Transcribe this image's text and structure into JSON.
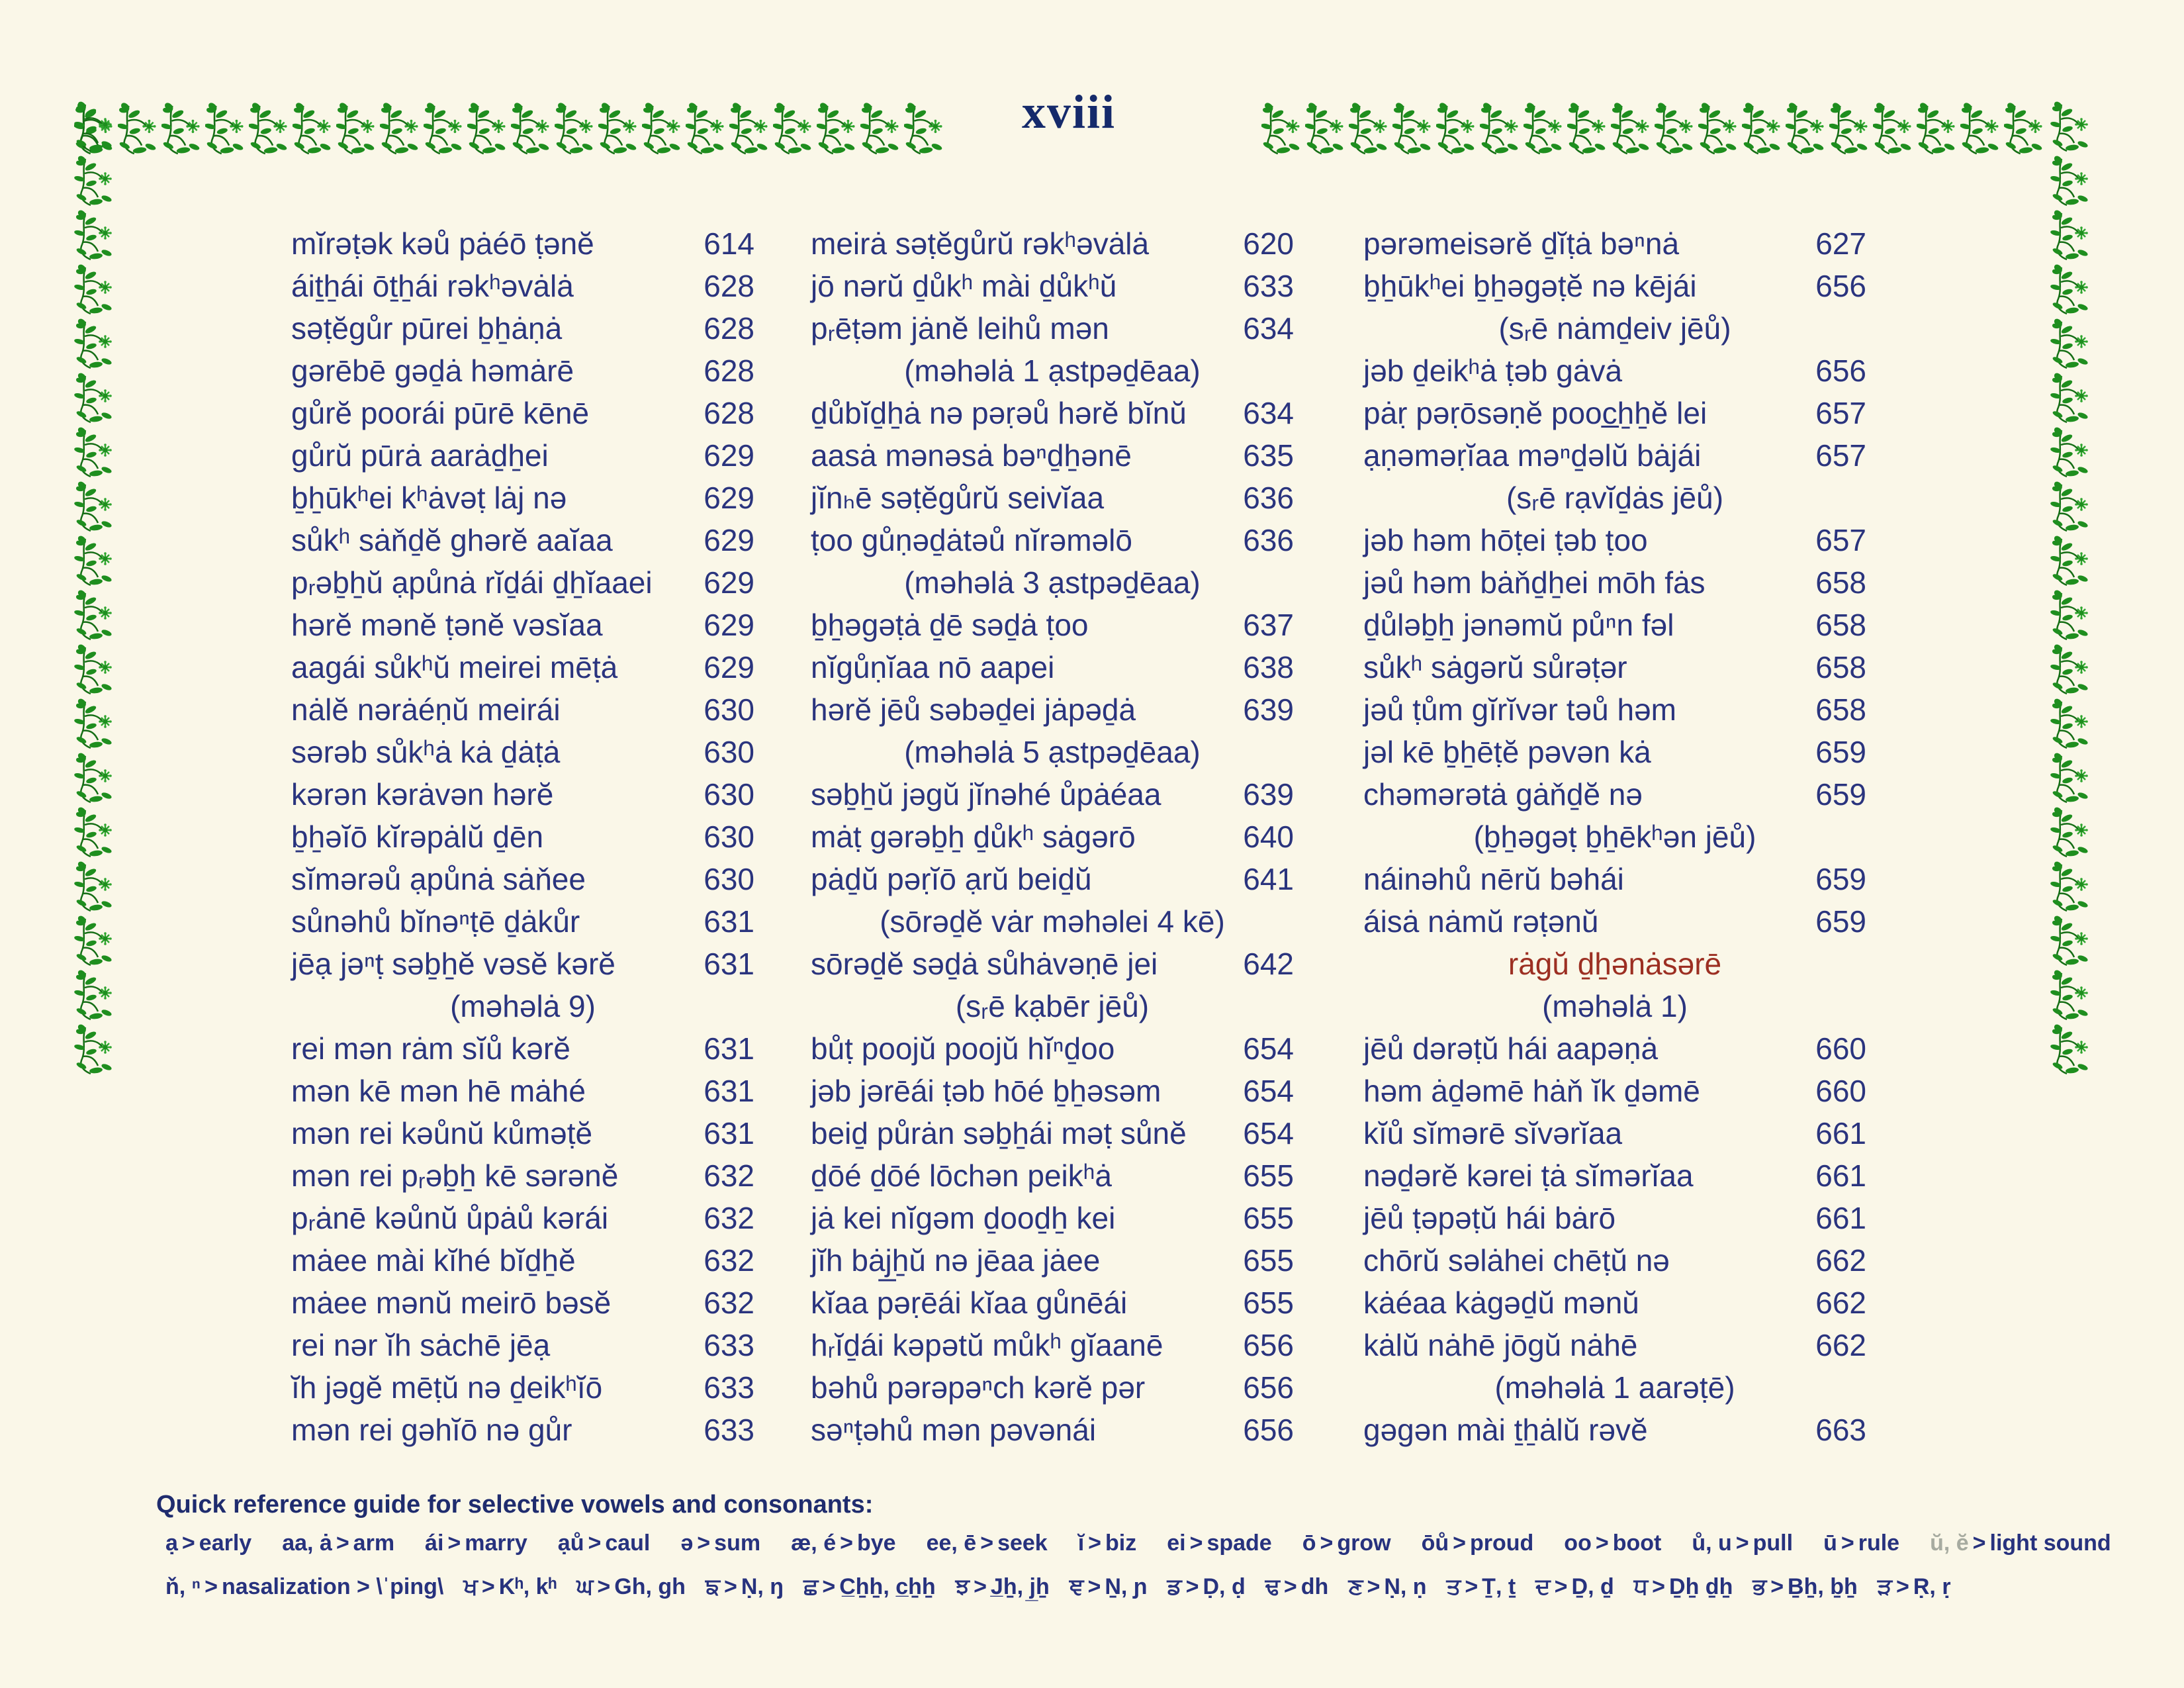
{
  "page": {
    "number_label": "xviii",
    "colors": {
      "background": "#FAF7E8",
      "ink_navy": "#2A347E",
      "title_navy": "#152A6B",
      "raga_red": "#9C2F22",
      "muted_gray": "#A7ABA0",
      "ornament_green": "#1E8E1E"
    },
    "columns": [
      {
        "entries": [
          {
            "t": "mĭrəṭək kəů pȧéō ṭənĕ",
            "p": "614"
          },
          {
            "t": "áiṯẖái ōṯẖái rəkʰəvȧlȧ",
            "p": "628"
          },
          {
            "t": "səṭĕgůr pūrei ḇẖȧṇȧ",
            "p": "628"
          },
          {
            "t": "gərēbē gəḏȧ həmȧrē",
            "p": "628"
          },
          {
            "t": "gůrĕ poorái pūrē kēnē",
            "p": "628"
          },
          {
            "t": "gůrŭ pūrȧ aarȧḏẖei",
            "p": "629"
          },
          {
            "t": "ḇẖūkʰei kʰȧvəṭ lȧj nə",
            "p": "629"
          },
          {
            "t": "sůkʰ sȧňḏĕ ghərĕ aaĭaa",
            "p": "629"
          },
          {
            "t": "pᵣəḇẖŭ ạpůnȧ rĭḏái ḏẖĭaaei",
            "p": "629"
          },
          {
            "t": "hərĕ mənĕ ṭənĕ vəsĭaa",
            "p": "629"
          },
          {
            "t": "aagái sůkʰŭ meirei mēṭȧ",
            "p": "629"
          },
          {
            "t": "nȧlĕ nərȧéṇŭ meirái",
            "p": "630"
          },
          {
            "t": "sərəb sůkʰȧ kȧ ḏȧṭȧ",
            "p": "630"
          },
          {
            "t": "kərən kərȧvən hərĕ",
            "p": "630"
          },
          {
            "t": "ḇẖəĭō kĭrəpȧlŭ ḏēn",
            "p": "630"
          },
          {
            "t": "sĭmərəů ạpůnȧ sȧňee",
            "p": "630"
          },
          {
            "t": "sůnəhů bĭnəⁿṭē ḏȧkůr",
            "p": "631"
          },
          {
            "t": "jēạ jəⁿṭ səḇẖĕ vəsĕ kərĕ",
            "p": "631"
          },
          {
            "h": "(məhəlȧ 9)"
          },
          {
            "t": "rei mən rȧm sĭů kərĕ",
            "p": "631"
          },
          {
            "t": "mən kē mən hē mȧhé",
            "p": "631"
          },
          {
            "t": "mən rei kəůnŭ kůməṭĕ",
            "p": "631"
          },
          {
            "t": "mən rei pᵣəḇẖ kē sərənĕ",
            "p": "632"
          },
          {
            "t": "pᵣȧnē kəůnŭ ůpȧů kərái",
            "p": "632"
          },
          {
            "t": "mȧee mài kĭhé bĭḏẖĕ",
            "p": "632"
          },
          {
            "t": "mȧee mənŭ meirō bəsĕ",
            "p": "632"
          },
          {
            "t": "rei nər ĭh sȧchē jēạ",
            "p": "633"
          },
          {
            "t": "ĭh jəgĕ mēṭŭ nə ḏeikʰĭō",
            "p": "633"
          },
          {
            "t": "mən rei gəhĭō nə gůr",
            "p": "633"
          }
        ]
      },
      {
        "entries": [
          {
            "t": "meirȧ səṭĕgůrŭ rəkʰəvȧlȧ",
            "p": "620"
          },
          {
            "t": "jō nərŭ ḏůkʰ mài ḏůkʰŭ",
            "p": "633"
          },
          {
            "t": "pᵣēṭəm jȧnĕ leihů mən",
            "p": "634"
          },
          {
            "h": "(məhəlȧ 1 ạstpəḏēaa)"
          },
          {
            "t": "ḏůbĭḏẖȧ nə pəṛəů hərĕ bĭnŭ",
            "p": "634"
          },
          {
            "t": "aasȧ mənəsȧ bəⁿḏẖənē",
            "p": "635"
          },
          {
            "t": "jĭnₕē səṭĕgůrŭ seivĭaa",
            "p": "636"
          },
          {
            "t": "ṭoo gůṇəḏȧtəů nĭrəməlō",
            "p": "636"
          },
          {
            "h": "(məhəlȧ 3 ạstpəḏēaa)"
          },
          {
            "t": "ḇẖəgəṭȧ ḏē səḏȧ ṭoo",
            "p": "637"
          },
          {
            "t": "nĭgůṇĭaa nō aapei",
            "p": "638"
          },
          {
            "t": "hərĕ jēů səbəḏei jȧpəḏȧ",
            "p": "639"
          },
          {
            "h": "(məhəlȧ 5 ạstpəḏēaa)"
          },
          {
            "t": "səḇẖŭ jəgŭ jĭnəhé ůpȧéaa",
            "p": "639"
          },
          {
            "t": "mȧṭ gərəḇẖ ḏůkʰ sȧgərō",
            "p": "640"
          },
          {
            "t": "pȧḏŭ pəṛĭō ạrŭ beiḏŭ",
            "p": "641"
          },
          {
            "h": "(sōrəḏĕ vȧr məhəlei 4 kē)"
          },
          {
            "t": "sōrəḏĕ səḏȧ sůhȧvəṇē jei",
            "p": "642"
          },
          {
            "h": "(sᵣē kạbēr jēů)"
          },
          {
            "t": "bůṭ poojŭ poojŭ hĭⁿḏoo",
            "p": "654"
          },
          {
            "t": "jəb jərēái ṭəb hōé ḇẖəsəm",
            "p": "654"
          },
          {
            "t": "beiḏ půrȧn səḇẖái məṭ sůnĕ",
            "p": "654"
          },
          {
            "t": "ḏōé ḏōé lōchən peikʰȧ",
            "p": "655"
          },
          {
            "t": "jȧ kei nĭgəm ḏooḏẖ kei",
            "p": "655"
          },
          {
            "t": "jĭh bȧj̲ẖŭ nə jēaa jȧee",
            "p": "655"
          },
          {
            "t": "kĭaa pəṛēái kĭaa gůnēái",
            "p": "655"
          },
          {
            "t": "hᵣĭḏái kəpətŭ můkʰ gĭaanē",
            "p": "656"
          },
          {
            "t": "bəhů pərəpəⁿch kərĕ pər",
            "p": "656"
          },
          {
            "t": "səⁿṭəhů mən pəvənái",
            "p": "656"
          }
        ]
      },
      {
        "entries": [
          {
            "t": "pərəmeisərĕ ḏĭṭȧ bəⁿnȧ",
            "p": "627"
          },
          {
            "t": "ḇẖūkʰei ḇẖəgəṭĕ nə kējái",
            "p": "656"
          },
          {
            "h": "(sᵣē nȧmḏeiv jēů)"
          },
          {
            "t": "jəb ḏeikʰȧ ṭəb gȧvȧ",
            "p": "656"
          },
          {
            "t": "pȧṛ pəṛōsəṇĕ pooc̲ẖẖĕ lei",
            "p": "657"
          },
          {
            "t": "ạṇəməṛĭaa məⁿḏəlŭ bȧjái",
            "p": "657"
          },
          {
            "h": "(sᵣē rạvĭḏȧs jēů)"
          },
          {
            "t": "jəb həm hōṭei ṭəb ṭoo",
            "p": "657"
          },
          {
            "t": "jəů həm bȧňḏẖei mōh fȧs",
            "p": "658"
          },
          {
            "t": "ḏůləḇẖ jənəmŭ půⁿn fəl",
            "p": "658"
          },
          {
            "t": "sůkʰ sȧgərŭ sůrəṭər",
            "p": "658"
          },
          {
            "t": "jəů ṭům gĭrĭvər təů həm",
            "p": "658"
          },
          {
            "t": "jəl kē ḇẖēṭĕ pəvən kȧ",
            "p": "659"
          },
          {
            "t": "chəmərətȧ gȧňḏĕ nə",
            "p": "659"
          },
          {
            "h": "(ḇẖəgəṭ ḇẖēkʰən jēů)"
          },
          {
            "t": "náinəhů nērŭ bəhái",
            "p": "659"
          },
          {
            "t": "áisȧ nȧmŭ rəṭənŭ",
            "p": "659"
          },
          {
            "h": "rȧgŭ ḏẖənȧsərē",
            "red": true
          },
          {
            "h": "(məhəlȧ 1)"
          },
          {
            "t": "jēů dərəṭŭ hái aapəṇȧ",
            "p": "660"
          },
          {
            "t": "həm ȧḏəmē hȧň ĭk ḏəmē",
            "p": "660"
          },
          {
            "t": "kĭů sĭmərē sĭvərĭaa",
            "p": "661"
          },
          {
            "t": "nəḏərĕ kərei ṭȧ sĭmərĭaa",
            "p": "661"
          },
          {
            "t": "jēů ṭəpəṭŭ hái bȧrō",
            "p": "661"
          },
          {
            "t": "chōrŭ səlȧhei chēṭŭ nə",
            "p": "662"
          },
          {
            "t": "kȧéaa kȧgəḏŭ mənŭ",
            "p": "662"
          },
          {
            "t": "kȧlŭ nȧhē jōgŭ nȧhē",
            "p": "662"
          },
          {
            "h": "(məhəlȧ 1 aarəṭē)"
          },
          {
            "t": "gəgən mài ṯẖȧlŭ rəvĕ",
            "p": "663"
          }
        ]
      }
    ],
    "footer": {
      "title": "Quick reference guide for selective vowels and consonants:",
      "vowels": [
        {
          "k": "ạ",
          "v": "early"
        },
        {
          "k": "aa, ȧ",
          "v": "arm"
        },
        {
          "k": "ái",
          "v": "marry"
        },
        {
          "k": "ạů",
          "v": "caul"
        },
        {
          "k": "ə",
          "v": "sum"
        },
        {
          "k": "æ, é",
          "v": "bye"
        },
        {
          "k": "ee, ē",
          "v": "seek"
        },
        {
          "k": "ĭ",
          "v": "biz"
        },
        {
          "k": "ei",
          "v": "spade"
        },
        {
          "k": "ō",
          "v": "grow"
        },
        {
          "k": "ōů",
          "v": "proud"
        },
        {
          "k": "oo",
          "v": "boot"
        },
        {
          "k": "ů, u",
          "v": "pull"
        },
        {
          "k": "ū",
          "v": "rule"
        },
        {
          "k": "ŭ, ĕ",
          "v": "light sound",
          "muted": true
        }
      ],
      "consonants": [
        {
          "k": "ň, ⁿ",
          "v": "nasalization > \\ˈping\\"
        },
        {
          "k": "ਖ",
          "v": "Kʰ, kʰ"
        },
        {
          "k": "ਘ",
          "v": "Gh, gh"
        },
        {
          "k": "ਙ",
          "v": "Ṇ, ŋ"
        },
        {
          "k": "ਛ",
          "v": "C̲ẖẖ, c̲ẖẖ"
        },
        {
          "k": "ਝ",
          "v": "J̲ẖ, j̲ẖ"
        },
        {
          "k": "ਞ",
          "v": "Ṉ, ɲ"
        },
        {
          "k": "ਡ",
          "v": "Ḍ, ḍ"
        },
        {
          "k": "ਢ",
          "v": "dh"
        },
        {
          "k": "ਣ",
          "v": "Ṇ, ṇ"
        },
        {
          "k": "ਤ",
          "v": "Ṯ, ṯ"
        },
        {
          "k": "ਦ",
          "v": "Ḏ, ḏ"
        },
        {
          "k": "ਧ",
          "v": "Ḏẖ ḏẖ"
        },
        {
          "k": "ਭ",
          "v": "Ḇẖ, ḇẖ"
        },
        {
          "k": "ੜ",
          "v": "Ṛ, ṛ"
        }
      ]
    }
  }
}
